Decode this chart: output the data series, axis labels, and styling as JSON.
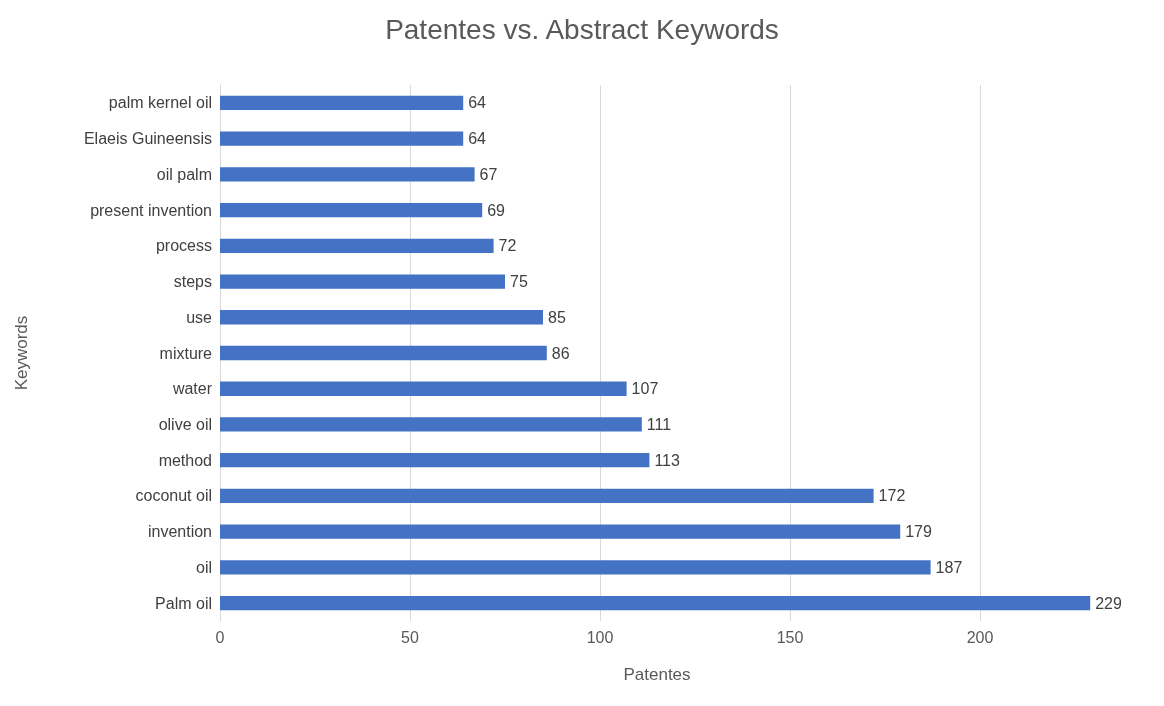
{
  "chart_data": {
    "type": "bar",
    "orientation": "horizontal",
    "title": "Patentes vs. Abstract Keywords",
    "xlabel": "Patentes",
    "ylabel": "Keywords",
    "categories": [
      "palm kernel oil",
      "Elaeis Guineensis",
      "oil palm",
      "present invention",
      "process",
      "steps",
      "use",
      "mixture",
      "water",
      "olive oil",
      "method",
      "coconut oil",
      "invention",
      "oil",
      "Palm oil"
    ],
    "values": [
      64,
      64,
      67,
      69,
      72,
      75,
      85,
      86,
      107,
      111,
      113,
      172,
      179,
      187,
      229
    ],
    "color": "#4472c4",
    "xlim": [
      0,
      230
    ],
    "xticks": [
      0,
      50,
      100,
      150,
      200
    ],
    "grid": "x",
    "data_labels": true
  }
}
